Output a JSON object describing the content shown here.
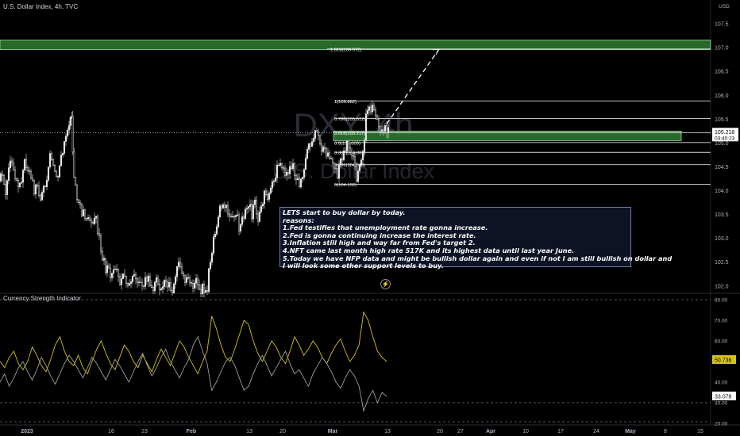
{
  "header": {
    "title": "U.S. Dollar Index, 4h, TVC"
  },
  "watermark": {
    "main": "DXY, 4h",
    "sub": "U.S. Dollar Index"
  },
  "indicator": {
    "title": "Currency Strength Indicator"
  },
  "note": {
    "lines": [
      "LETS start to buy dollar by today.",
      "reasons:",
      "1.Fed testifies that unemployment rate gonna increase.",
      "2.Fed is gonna continuing increase the interest rate.",
      "3.Inflation still high and way far from Fed's target 2.",
      "4.NFT came last month high rate 517K and its highest data until last year June.",
      "5.Today we have NFP data and might be bullish dollar again and even if not I am still bullish on dollar and",
      "I will look some other support levels to buy."
    ]
  },
  "colors": {
    "background": "#000000",
    "candle_up": "#e8e8e8",
    "candle_down": "#e8e8e8",
    "zone_fill": "#2e7d32",
    "zone_border": "#a5d6a7",
    "fib_line": "#ffffff",
    "strength_usd": "#d4c41a",
    "strength_other": "#9e9e9e",
    "price_label_bg": "#ffffff"
  },
  "chart_data": [
    {
      "type": "candlestick",
      "title": "U.S. Dollar Index, 4h, TVC",
      "currency": "USD",
      "ylim": [
        101.88,
        108.0
      ],
      "y_ticks": [
        102.0,
        102.5,
        103.0,
        103.5,
        104.0,
        104.5,
        105.0,
        105.5,
        106.0,
        106.5,
        107.0,
        107.5
      ],
      "x_ticks": [
        "2023",
        "16",
        "23",
        "Feb",
        "13",
        "20",
        "Mar",
        "13",
        "20",
        "27",
        "Apr",
        "10",
        "17",
        "24",
        "May",
        "8",
        "15"
      ],
      "last_price": "105.218",
      "countdown": "03:40:23",
      "close_path": [
        [
          0,
          104.2
        ],
        [
          4,
          104.3
        ],
        [
          8,
          104.0
        ],
        [
          12,
          104.4
        ],
        [
          16,
          104.6
        ],
        [
          20,
          104.3
        ],
        [
          24,
          104.1
        ],
        [
          28,
          104.3
        ],
        [
          32,
          104.6
        ],
        [
          36,
          104.4
        ],
        [
          40,
          104.2
        ],
        [
          44,
          104.0
        ],
        [
          48,
          104.1
        ],
        [
          52,
          103.9
        ],
        [
          56,
          104.0
        ],
        [
          60,
          104.3
        ],
        [
          64,
          104.9
        ],
        [
          68,
          104.6
        ],
        [
          72,
          104.3
        ],
        [
          76,
          104.5
        ],
        [
          80,
          104.9
        ],
        [
          84,
          105.2
        ],
        [
          88,
          105.4
        ],
        [
          91,
          105.55
        ],
        [
          94,
          104.2
        ],
        [
          98,
          103.9
        ],
        [
          102,
          103.6
        ],
        [
          106,
          103.5
        ],
        [
          110,
          103.3
        ],
        [
          114,
          103.5
        ],
        [
          118,
          103.2
        ],
        [
          122,
          103.4
        ],
        [
          126,
          103.0
        ],
        [
          130,
          102.6
        ],
        [
          134,
          102.4
        ],
        [
          138,
          102.3
        ],
        [
          142,
          102.2
        ],
        [
          146,
          102.3
        ],
        [
          150,
          102.2
        ],
        [
          154,
          102.1
        ],
        [
          158,
          102.2
        ],
        [
          162,
          102.0
        ],
        [
          166,
          102.1
        ],
        [
          170,
          102.2
        ],
        [
          174,
          102.0
        ],
        [
          178,
          102.1
        ],
        [
          182,
          102.0
        ],
        [
          186,
          102.2
        ],
        [
          190,
          102.1
        ],
        [
          194,
          102.0
        ],
        [
          198,
          102.1
        ],
        [
          202,
          102.0
        ],
        [
          206,
          101.95
        ],
        [
          210,
          102.1
        ],
        [
          214,
          102.0
        ],
        [
          218,
          101.95
        ],
        [
          222,
          102.2
        ],
        [
          226,
          102.5
        ],
        [
          230,
          102.3
        ],
        [
          234,
          102.1
        ],
        [
          238,
          102.2
        ],
        [
          242,
          102.0
        ],
        [
          246,
          102.1
        ],
        [
          250,
          102.0
        ],
        [
          254,
          101.95
        ],
        [
          258,
          101.9
        ],
        [
          262,
          102.0
        ],
        [
          266,
          102.5
        ],
        [
          270,
          103.0
        ],
        [
          274,
          103.3
        ],
        [
          278,
          103.6
        ],
        [
          282,
          103.8
        ],
        [
          286,
          103.6
        ],
        [
          290,
          103.5
        ],
        [
          294,
          103.4
        ],
        [
          298,
          103.6
        ],
        [
          302,
          103.2
        ],
        [
          306,
          103.4
        ],
        [
          310,
          103.5
        ],
        [
          314,
          103.7
        ],
        [
          318,
          103.5
        ],
        [
          322,
          103.7
        ],
        [
          326,
          103.4
        ],
        [
          330,
          103.6
        ],
        [
          334,
          103.9
        ],
        [
          338,
          103.7
        ],
        [
          342,
          104.0
        ],
        [
          346,
          104.2
        ],
        [
          350,
          104.5
        ],
        [
          354,
          104.6
        ],
        [
          358,
          104.4
        ],
        [
          362,
          104.3
        ],
        [
          366,
          104.6
        ],
        [
          370,
          104.5
        ],
        [
          374,
          104.2
        ],
        [
          378,
          104.1
        ],
        [
          382,
          104.4
        ],
        [
          386,
          104.6
        ],
        [
          390,
          104.9
        ],
        [
          394,
          105.1
        ],
        [
          398,
          105.25
        ],
        [
          402,
          105.1
        ],
        [
          406,
          104.8
        ],
        [
          410,
          104.9
        ],
        [
          414,
          104.7
        ],
        [
          418,
          104.6
        ],
        [
          422,
          104.5
        ],
        [
          426,
          104.3
        ],
        [
          430,
          104.6
        ],
        [
          434,
          104.9
        ],
        [
          438,
          105.0
        ],
        [
          442,
          104.7
        ],
        [
          446,
          104.6
        ],
        [
          450,
          104.3
        ],
        [
          454,
          104.5
        ],
        [
          458,
          104.8
        ],
        [
          462,
          105.5
        ],
        [
          466,
          105.8
        ],
        [
          470,
          105.75
        ],
        [
          474,
          105.5
        ],
        [
          478,
          105.3
        ],
        [
          482,
          105.2
        ],
        [
          486,
          105.3
        ],
        [
          490,
          105.22
        ]
      ],
      "fib_levels": [
        {
          "label": "1.618(106.972)",
          "value": 106.972
        },
        {
          "label": "1(105.882)",
          "value": 105.882
        },
        {
          "label": "0.786(105.512)",
          "value": 105.512
        },
        {
          "label": "0.618(105.217)",
          "value": 105.217
        },
        {
          "label": "0.5(105.009)",
          "value": 105.009
        },
        {
          "label": "0.382(104.803)",
          "value": 104.803
        },
        {
          "label": "0.236(104.546)",
          "value": 104.546
        },
        {
          "label": "0(104.132)",
          "value": 104.132
        }
      ],
      "zones": [
        {
          "from": 106.96,
          "to": 107.16
        },
        {
          "from": 105.05,
          "to": 105.25
        }
      ],
      "projection": {
        "from": [
          487,
          105.4
        ],
        "to": [
          553,
          106.97
        ]
      }
    },
    {
      "type": "line",
      "title": "Currency Strength Indicator",
      "ylim": [
        20,
        80
      ],
      "y_ticks": [
        20.0,
        30.0,
        40.0,
        50.0,
        60.0,
        70.0,
        80.0
      ],
      "series": [
        {
          "name": "",
          "last_value": "50.736",
          "values": [
            50,
            47,
            52,
            55,
            49,
            46,
            50,
            57,
            53,
            48,
            45,
            51,
            58,
            62,
            55,
            50,
            48,
            53,
            47,
            44,
            50,
            56,
            60,
            54,
            49,
            46,
            52,
            58,
            55,
            50,
            47,
            53,
            49,
            45,
            51,
            56,
            52,
            48,
            54,
            60,
            57,
            52,
            48,
            44,
            50,
            55,
            72,
            66,
            58,
            52,
            50,
            56,
            63,
            70,
            68,
            60,
            54,
            50,
            55,
            60,
            57,
            52,
            49,
            55,
            62,
            58,
            53,
            56,
            60,
            57,
            52,
            49,
            54,
            58,
            61,
            55,
            50,
            53,
            58,
            74,
            70,
            62,
            55,
            52,
            50
          ]
        },
        {
          "name": "",
          "last_value": "33.078",
          "values": [
            40,
            44,
            38,
            42,
            47,
            50,
            45,
            41,
            46,
            52,
            48,
            43,
            39,
            44,
            49,
            53,
            50,
            46,
            42,
            47,
            52,
            49,
            45,
            41,
            46,
            51,
            48,
            44,
            40,
            45,
            50,
            54,
            48,
            43,
            47,
            52,
            56,
            50,
            46,
            42,
            47,
            51,
            58,
            62,
            55,
            49,
            36,
            40,
            45,
            50,
            52,
            48,
            42,
            36,
            38,
            44,
            49,
            53,
            48,
            43,
            47,
            51,
            55,
            49,
            44,
            46,
            42,
            38,
            44,
            48,
            52,
            49,
            45,
            40,
            37,
            42,
            46,
            43,
            38,
            26,
            32,
            36,
            30,
            35,
            33
          ]
        }
      ]
    }
  ]
}
